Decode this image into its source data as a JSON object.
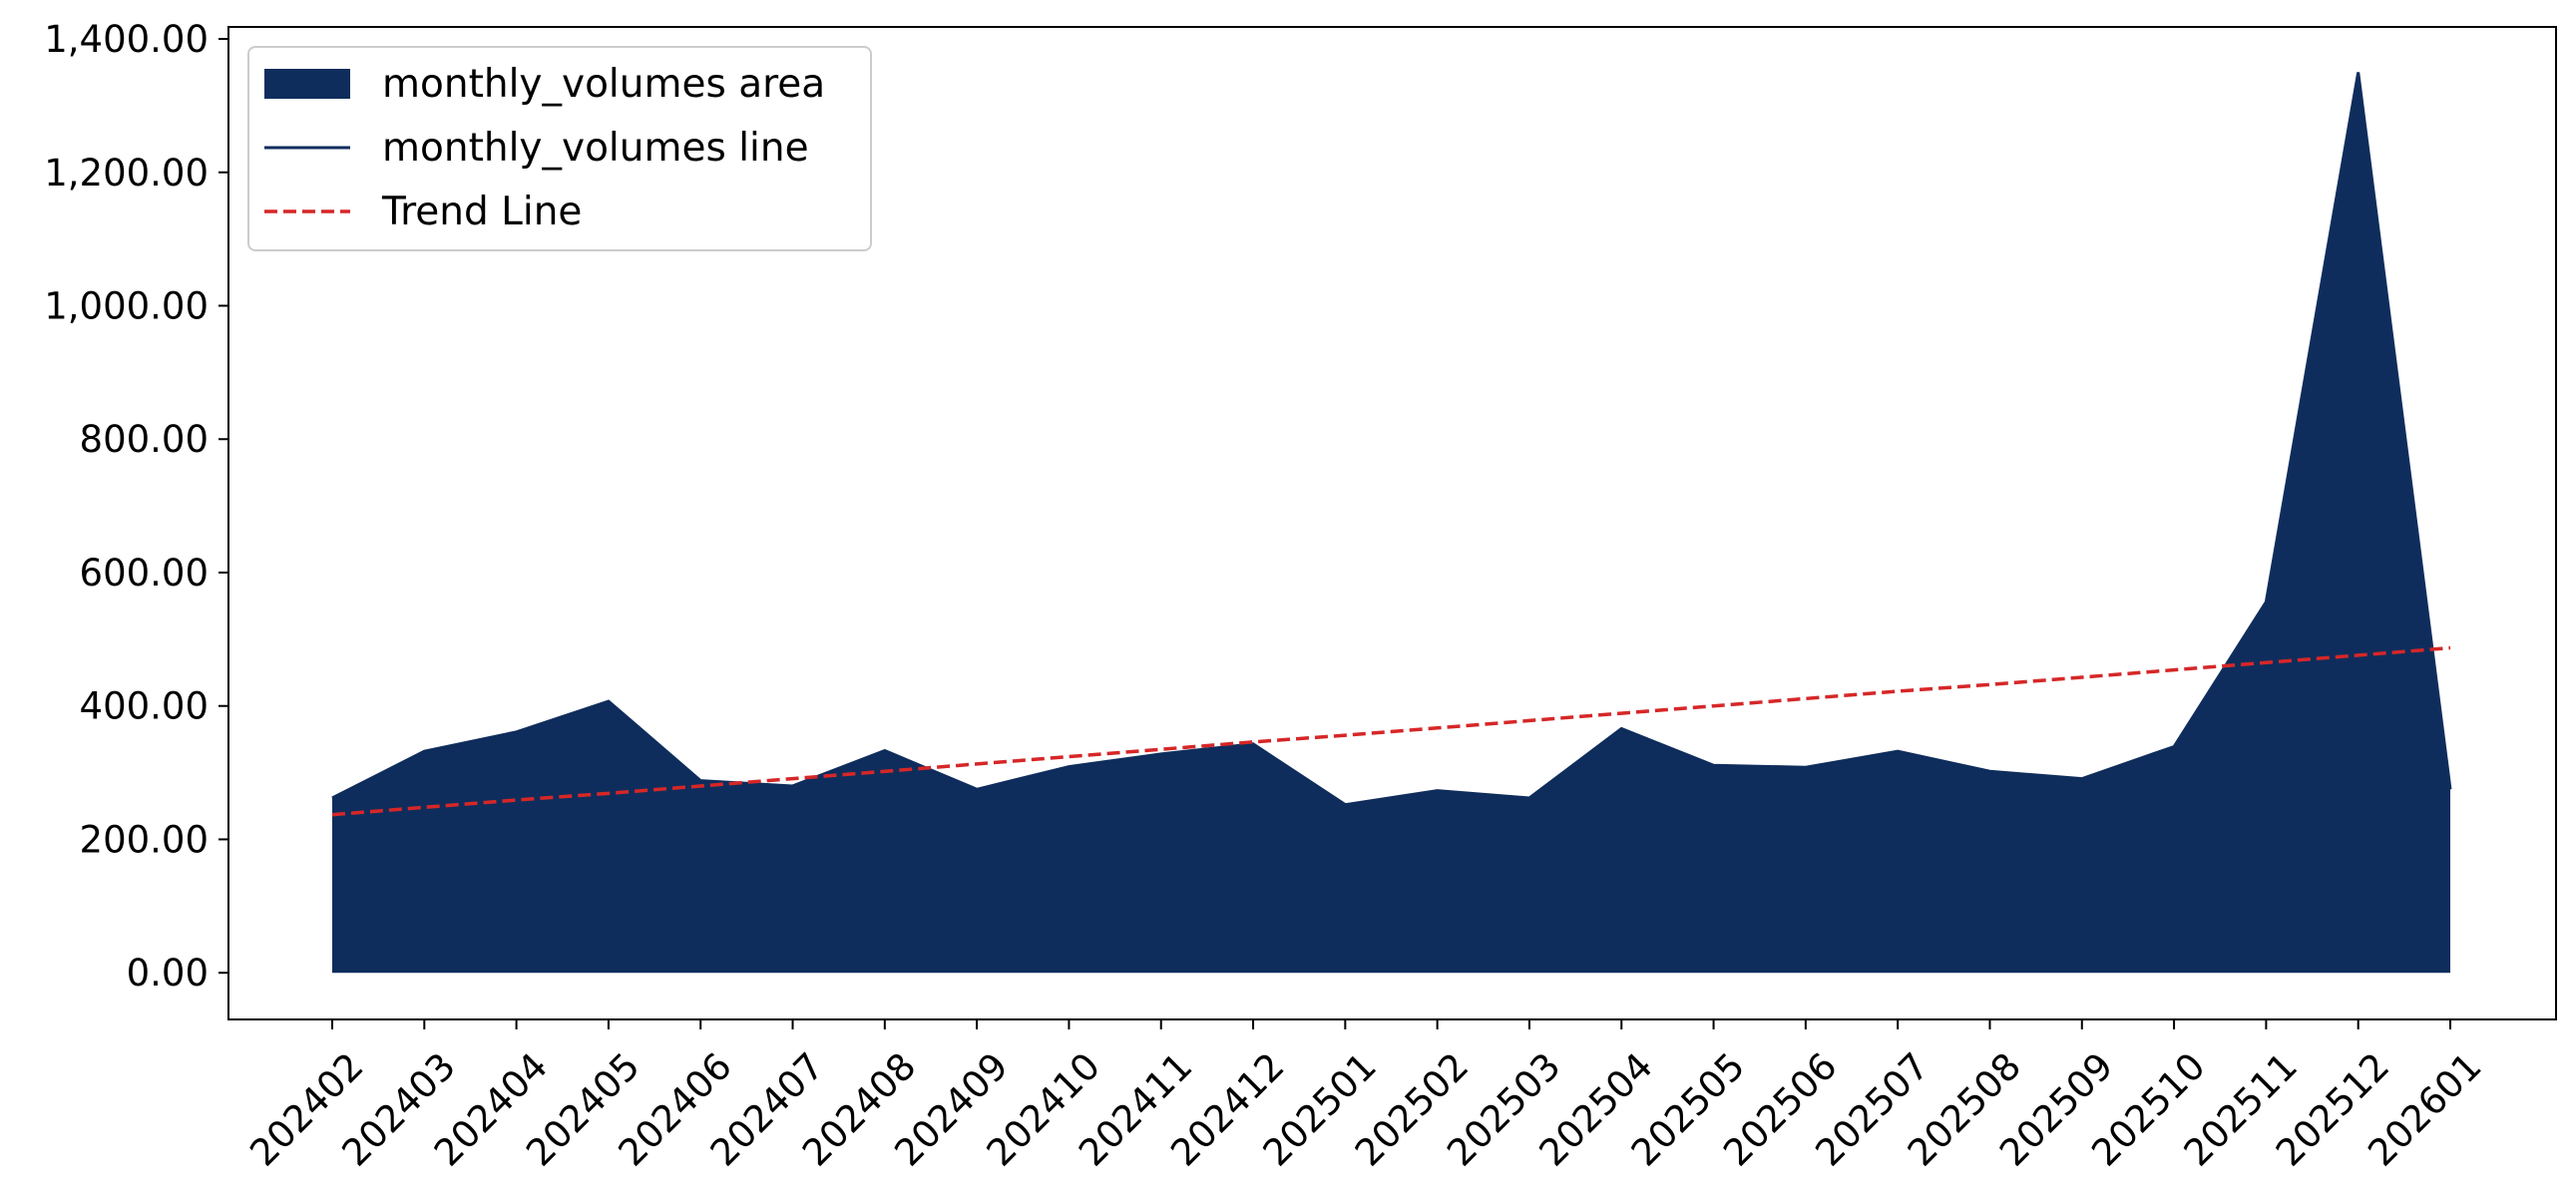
{
  "chart_data": {
    "type": "area",
    "categories": [
      "202402",
      "202403",
      "202404",
      "202405",
      "202406",
      "202407",
      "202408",
      "202409",
      "202410",
      "202411",
      "202412",
      "202501",
      "202502",
      "202503",
      "202504",
      "202505",
      "202506",
      "202507",
      "202508",
      "202509",
      "202510",
      "202511",
      "202512",
      "202601"
    ],
    "series": [
      {
        "name": "monthly_volumes area",
        "kind": "area",
        "color": "#0f2d5c",
        "values": [
          262,
          332,
          361,
          407,
          288,
          280,
          333,
          275,
          309,
          328,
          343,
          252,
          273,
          262,
          366,
          311,
          308,
          332,
          302,
          291,
          339,
          556,
          1350,
          275
        ]
      },
      {
        "name": "monthly_volumes line",
        "kind": "line",
        "color": "#0f2d5c",
        "values": [
          262,
          332,
          361,
          407,
          288,
          280,
          333,
          275,
          309,
          328,
          343,
          252,
          273,
          262,
          366,
          311,
          308,
          332,
          302,
          291,
          339,
          556,
          1350,
          275
        ]
      },
      {
        "name": "Trend Line",
        "kind": "line",
        "style": "dashed",
        "color": "#d62728",
        "values": [
          237,
          248,
          259,
          269,
          280,
          291,
          302,
          313,
          324,
          335,
          346,
          356,
          367,
          378,
          389,
          400,
          411,
          422,
          432,
          443,
          454,
          465,
          476,
          487
        ]
      }
    ],
    "yticks": [
      "0.00",
      "200.00",
      "400.00",
      "600.00",
      "800.00",
      "1,000.00",
      "1,200.00",
      "1,400.00"
    ],
    "ytick_values": [
      0,
      200,
      400,
      600,
      800,
      1000,
      1200,
      1400
    ],
    "ylim": [
      -70,
      1418
    ],
    "grid": false,
    "legend_position": "top-left",
    "title": "",
    "xlabel": "",
    "ylabel": ""
  }
}
